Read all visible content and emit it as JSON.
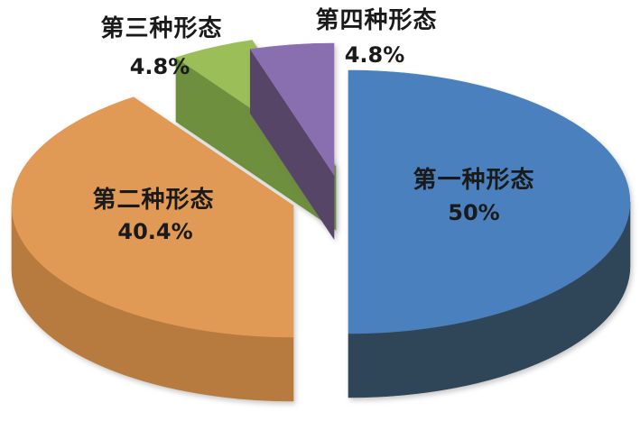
{
  "page": {
    "background_color": "#ffffff",
    "text_color": "#1a1a1a"
  },
  "chart_data": {
    "type": "pie",
    "style": "3d-exploded-pie",
    "title": "",
    "legend": "none",
    "labels_on_chart": true,
    "direction": "clockwise",
    "start_angle_deg": 0,
    "total": 100,
    "slices": [
      {
        "label": "第一种形态",
        "value": 50,
        "value_label": "50%",
        "color_top": "#4B80BE",
        "color_side": "#2F4558"
      },
      {
        "label": "第二种形态",
        "value": 40.4,
        "value_label": "40.4%",
        "color_top": "#E09A55",
        "color_side": "#B87B3F"
      },
      {
        "label": "第三种形态",
        "value": 4.8,
        "value_label": "4.8%",
        "color_top": "#9CBE58",
        "color_side": "#6E8F3D"
      },
      {
        "label": "第四种形态",
        "value": 4.8,
        "value_label": "4.8%",
        "color_top": "#8A6FB0",
        "color_side": "#564566"
      }
    ]
  }
}
